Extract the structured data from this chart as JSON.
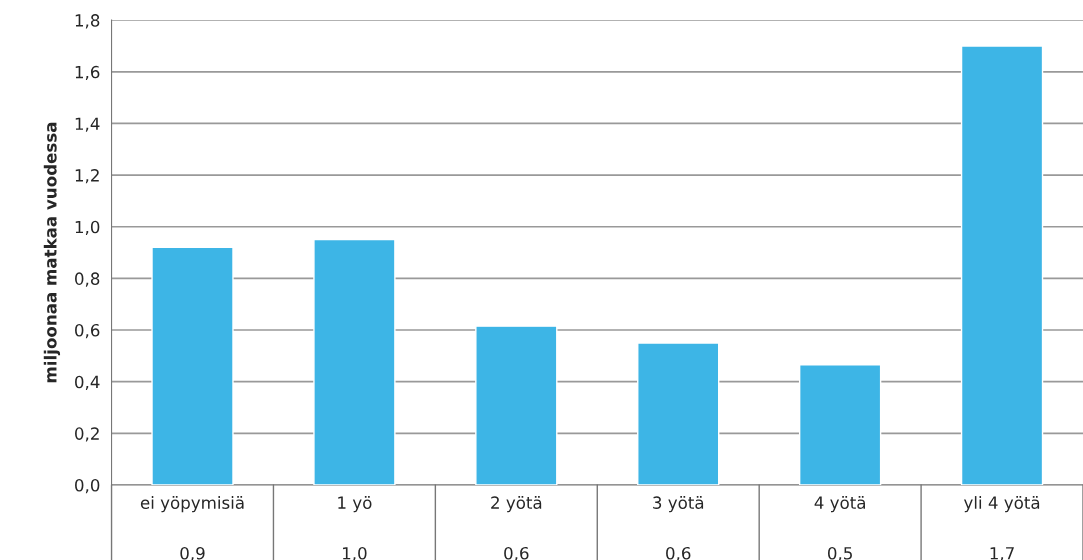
{
  "chart_data": {
    "type": "bar",
    "ylabel": "miljoonaa matkaa vuodessa",
    "categories": [
      "ei yöpymisiä",
      "1 yö",
      "2 yötä",
      "3 yötä",
      "4 yötä",
      "yli 4 yötä"
    ],
    "values": [
      0.92,
      0.95,
      0.615,
      0.55,
      0.465,
      1.7
    ],
    "value_labels": [
      "0,9",
      "1,0",
      "0,6",
      "0,6",
      "0,5",
      "1,7"
    ],
    "color": "#3db5e6",
    "ylim": [
      0,
      1.8
    ],
    "yticks": [
      {
        "value": 0,
        "label": "0,0"
      },
      {
        "value": 0.2,
        "label": "0,2"
      },
      {
        "value": 0.4,
        "label": "0,4"
      },
      {
        "value": 0.6,
        "label": "0,6"
      },
      {
        "value": 0.8,
        "label": "0,8"
      },
      {
        "value": 1.0,
        "label": "1,0"
      },
      {
        "value": 1.2,
        "label": "1,2"
      },
      {
        "value": 1.4,
        "label": "1,4"
      },
      {
        "value": 1.6,
        "label": "1,6"
      },
      {
        "value": 1.8,
        "label": "1,8"
      }
    ],
    "grid": "y",
    "legend": false
  }
}
